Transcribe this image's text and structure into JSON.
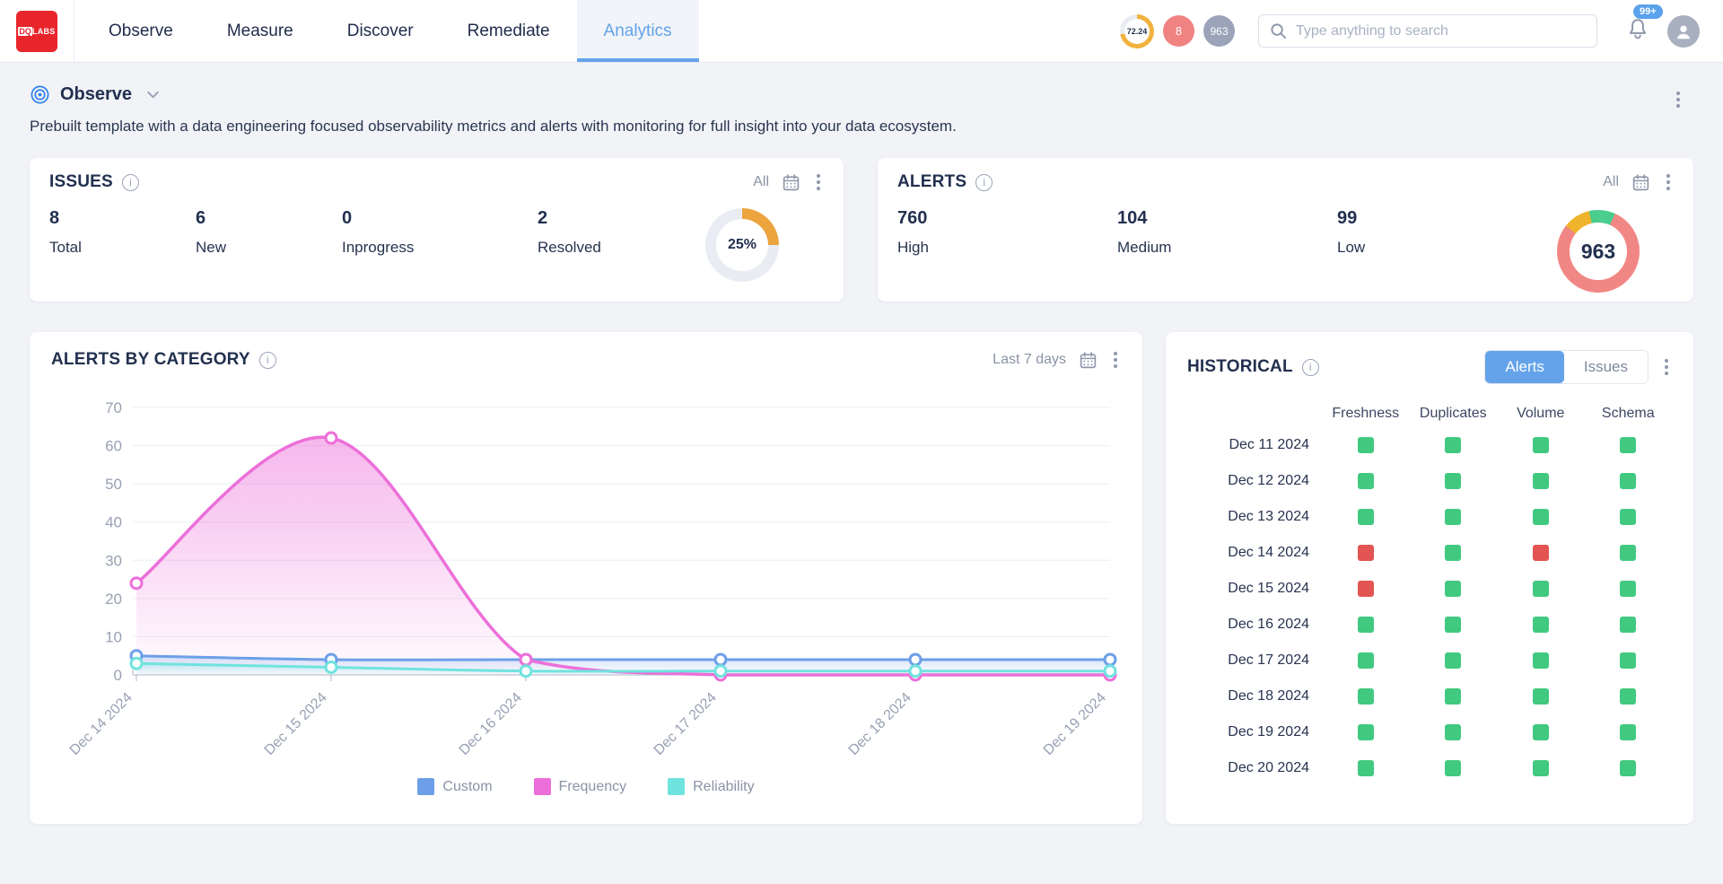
{
  "topbar": {
    "logo_dq": "DQ",
    "logo_labs": "LABS",
    "nav": [
      {
        "label": "Observe",
        "active": false
      },
      {
        "label": "Measure",
        "active": false
      },
      {
        "label": "Discover",
        "active": false
      },
      {
        "label": "Remediate",
        "active": false
      },
      {
        "label": "Analytics",
        "active": true
      }
    ],
    "score_badge": "72.24",
    "issue_badge": "8",
    "alert_badge": "963",
    "search_placeholder": "Type anything to search",
    "notification_count": "99+"
  },
  "page_header": {
    "title": "Observe",
    "description": "Prebuilt template with a data engineering focused observability metrics and alerts with monitoring for full insight into your data ecosystem."
  },
  "issues_card": {
    "title": "ISSUES",
    "filter_label": "All",
    "stats": [
      {
        "value": "8",
        "label": "Total"
      },
      {
        "value": "6",
        "label": "New"
      },
      {
        "value": "0",
        "label": "Inprogress"
      },
      {
        "value": "2",
        "label": "Resolved"
      }
    ],
    "donut": {
      "percent_label": "25%",
      "percent": 25,
      "color": "#ECA43E",
      "track": "#E9EDF3"
    }
  },
  "alerts_card": {
    "title": "ALERTS",
    "filter_label": "All",
    "stats": [
      {
        "value": "760",
        "label": "High"
      },
      {
        "value": "104",
        "label": "Medium"
      },
      {
        "value": "99",
        "label": "Low"
      }
    ],
    "donut": {
      "total_label": "963",
      "segments": [
        {
          "name": "High",
          "value": 760,
          "color": "#F18784"
        },
        {
          "name": "Medium",
          "value": 104,
          "color": "#F0B42C"
        },
        {
          "name": "Low",
          "value": 99,
          "color": "#4ACD8D"
        }
      ]
    }
  },
  "chart_card": {
    "title": "ALERTS BY CATEGORY",
    "range_label": "Last 7 days",
    "chart_data": {
      "type": "area",
      "x": [
        "Dec 14 2024",
        "Dec 15 2024",
        "Dec 16 2024",
        "Dec 17 2024",
        "Dec 18 2024",
        "Dec 19 2024"
      ],
      "series": [
        {
          "name": "Custom",
          "color": "#6D9FE8",
          "values": [
            5,
            4,
            4,
            4,
            4,
            4
          ]
        },
        {
          "name": "Frequency",
          "color": "#EC6FD9",
          "values": [
            24,
            62,
            4,
            0,
            0,
            0
          ]
        },
        {
          "name": "Reliability",
          "color": "#6FE3DE",
          "values": [
            3,
            2,
            1,
            1,
            1,
            1
          ]
        }
      ],
      "ylim": [
        0,
        70
      ],
      "ytick_step": 10,
      "grid": true,
      "legend_position": "bottom"
    }
  },
  "historical_card": {
    "title": "HISTORICAL",
    "tabs": [
      {
        "label": "Alerts",
        "active": true
      },
      {
        "label": "Issues",
        "active": false
      }
    ],
    "columns": [
      "Freshness",
      "Duplicates",
      "Volume",
      "Schema"
    ],
    "status_colors": {
      "ok": "#41C980",
      "alert": "#E25552"
    },
    "rows": [
      {
        "date": "Dec 11 2024",
        "cells": [
          "ok",
          "ok",
          "ok",
          "ok"
        ]
      },
      {
        "date": "Dec 12 2024",
        "cells": [
          "ok",
          "ok",
          "ok",
          "ok"
        ]
      },
      {
        "date": "Dec 13 2024",
        "cells": [
          "ok",
          "ok",
          "ok",
          "ok"
        ]
      },
      {
        "date": "Dec 14 2024",
        "cells": [
          "alert",
          "ok",
          "alert",
          "ok"
        ]
      },
      {
        "date": "Dec 15 2024",
        "cells": [
          "alert",
          "ok",
          "ok",
          "ok"
        ]
      },
      {
        "date": "Dec 16 2024",
        "cells": [
          "ok",
          "ok",
          "ok",
          "ok"
        ]
      },
      {
        "date": "Dec 17 2024",
        "cells": [
          "ok",
          "ok",
          "ok",
          "ok"
        ]
      },
      {
        "date": "Dec 18 2024",
        "cells": [
          "ok",
          "ok",
          "ok",
          "ok"
        ]
      },
      {
        "date": "Dec 19 2024",
        "cells": [
          "ok",
          "ok",
          "ok",
          "ok"
        ]
      },
      {
        "date": "Dec 20 2024",
        "cells": [
          "ok",
          "ok",
          "ok",
          "ok"
        ]
      }
    ]
  }
}
